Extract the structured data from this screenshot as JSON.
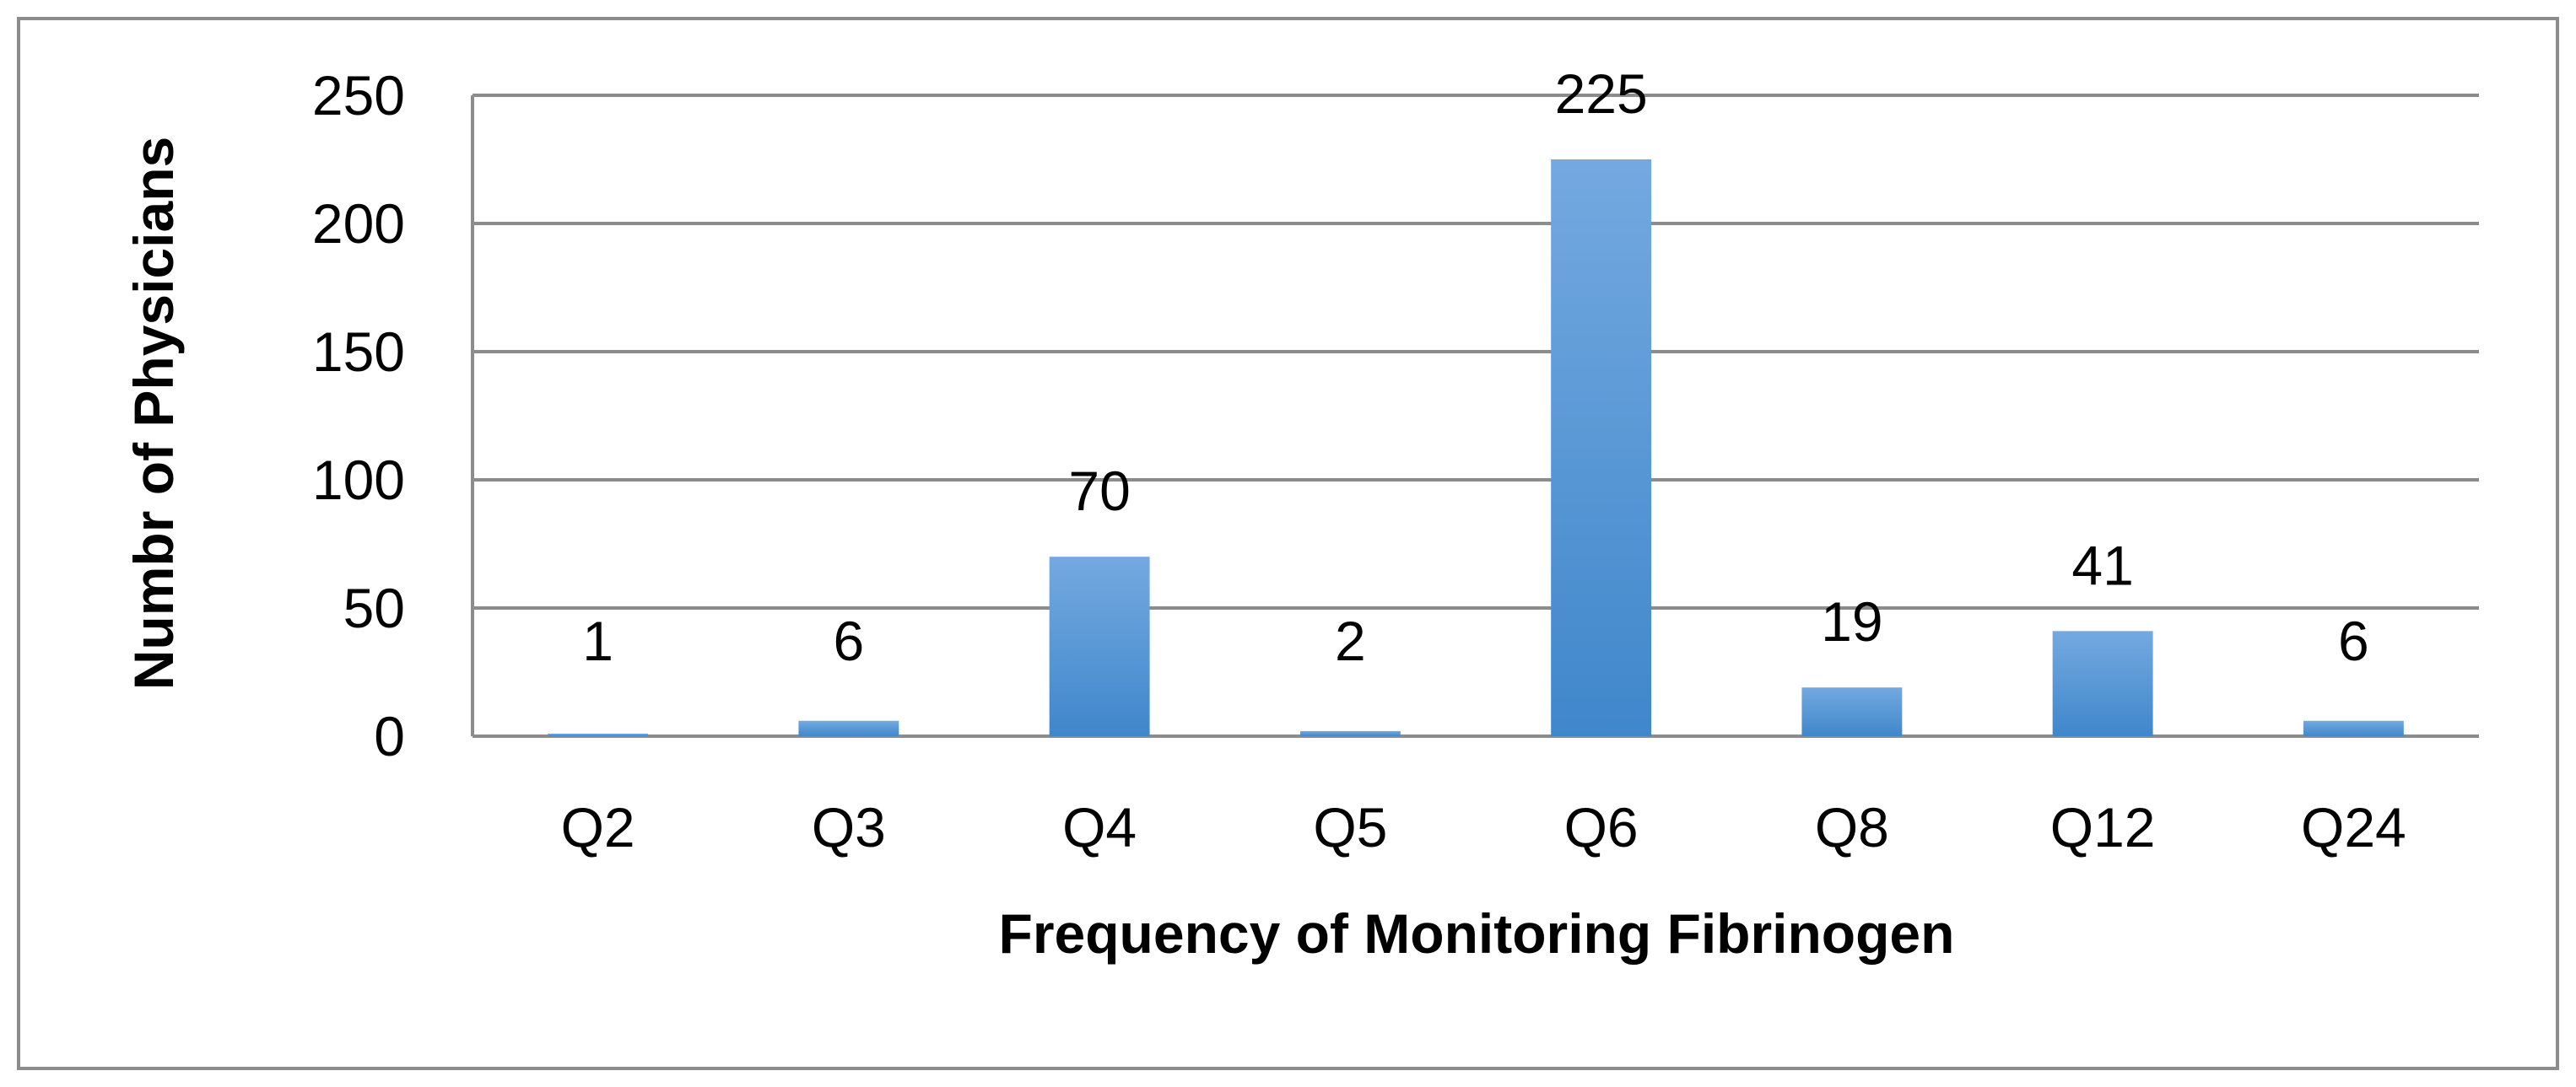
{
  "chart_data": {
    "type": "bar",
    "title": "",
    "xlabel": "Frequency of Monitoring Fibrinogen",
    "ylabel": "Numbr of Physicians",
    "categories": [
      "Q2",
      "Q3",
      "Q4",
      "Q5",
      "Q6",
      "Q8",
      "Q12",
      "Q24"
    ],
    "values": [
      1,
      6,
      70,
      2,
      225,
      19,
      41,
      6
    ],
    "data_labels": [
      "1",
      "6",
      "70",
      "2",
      "225",
      "19",
      "41",
      "6"
    ],
    "ylim": [
      0,
      250
    ],
    "yticks": [
      0,
      50,
      100,
      150,
      200,
      250
    ],
    "ytick_labels": [
      "0",
      "50",
      "100",
      "150",
      "200",
      "250"
    ],
    "grid": true,
    "legend": "none",
    "colors": {
      "bar_top": "#74A9E0",
      "bar_bottom": "#3F87CB",
      "grid": "#8C8C8C",
      "frame": "#8C8C8C"
    }
  }
}
